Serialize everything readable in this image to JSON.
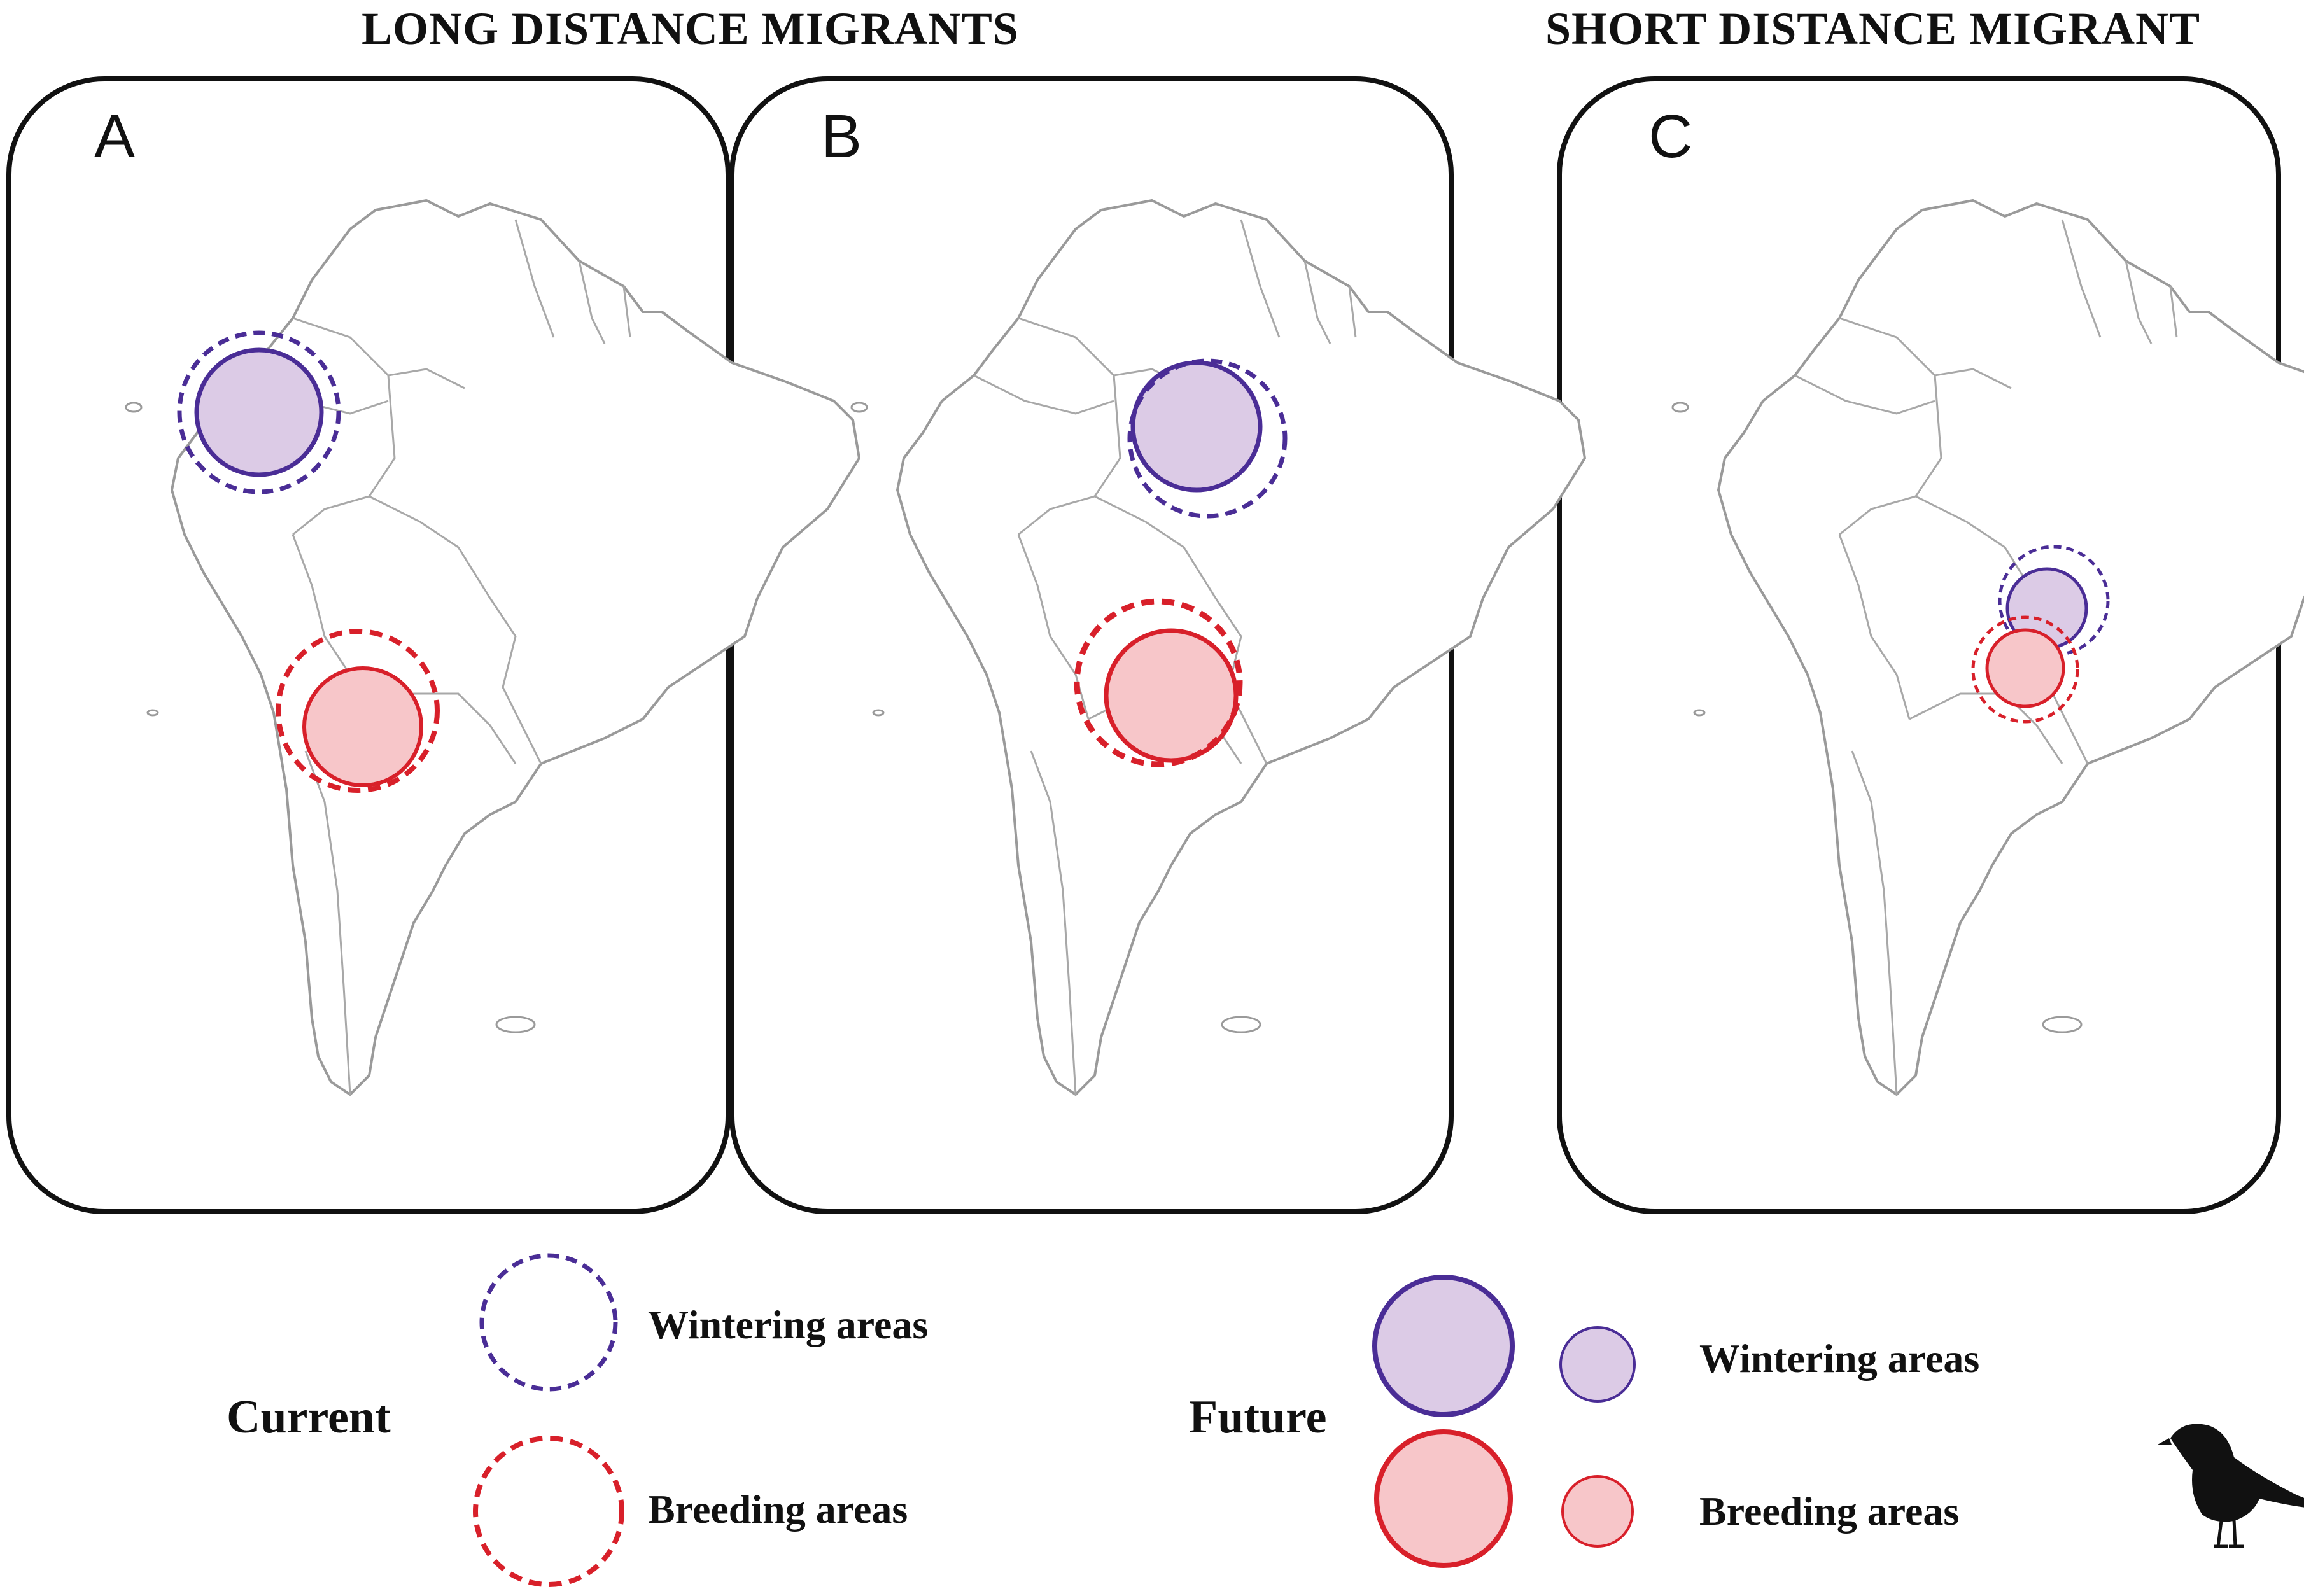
{
  "titles": {
    "long_distance": "LONG DISTANCE MIGRANTS",
    "short_distance": "SHORT DISTANCE MIGRANT"
  },
  "panels": [
    {
      "label": "A",
      "group": "long_distance"
    },
    {
      "label": "B",
      "group": "long_distance"
    },
    {
      "label": "C",
      "group": "short_distance"
    }
  ],
  "legend": {
    "current": {
      "title": "Current",
      "wintering_label": "Wintering areas",
      "breeding_label": "Breeding areas"
    },
    "future": {
      "title": "Future",
      "wintering_label": "Wintering areas",
      "breeding_label": "Breeding areas"
    }
  },
  "colors": {
    "wintering_stroke": "#4a2d96",
    "wintering_fill": "#dccbe6",
    "breeding_stroke": "#d8202a",
    "breeding_fill": "#f7c6c9",
    "map_border": "#9a9a9a",
    "panel_frame": "#111111"
  },
  "icons": {
    "bird": "bird-silhouette-icon"
  }
}
